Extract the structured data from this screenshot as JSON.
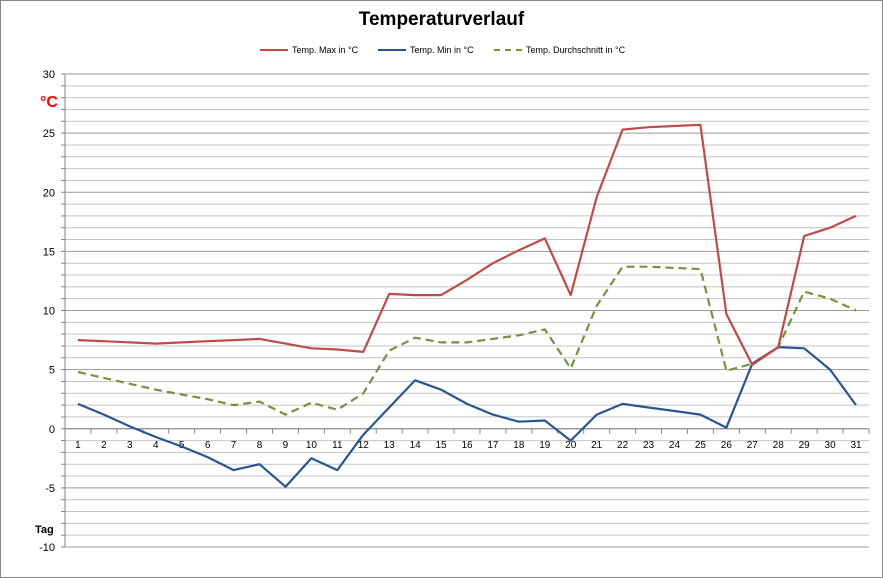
{
  "chart_data": {
    "type": "line",
    "title": "Temperaturverlauf",
    "unit_label": "°C",
    "xlabel": "Tag",
    "ylim": [
      -10,
      30
    ],
    "ytick_step": 5,
    "ytick_labels": [
      "30",
      "25",
      "20",
      "15",
      "10",
      "5",
      "0",
      "-5",
      "-10"
    ],
    "grid": true,
    "legend": "top",
    "categories": [
      "1",
      "2",
      "3",
      "4",
      "5",
      "6",
      "7",
      "8",
      "9",
      "10",
      "11",
      "12",
      "13",
      "14",
      "15",
      "16",
      "17",
      "18",
      "19",
      "20",
      "21",
      "22",
      "23",
      "24",
      "25",
      "26",
      "27",
      "28",
      "29",
      "30",
      "31"
    ],
    "series": [
      {
        "name": "Temp. Max in °C",
        "color": "#be4b48",
        "dash": "solid",
        "values": [
          7.5,
          7.4,
          7.3,
          7.2,
          7.3,
          7.4,
          7.5,
          7.6,
          7.2,
          6.8,
          6.7,
          6.5,
          11.4,
          11.3,
          11.3,
          12.6,
          14.0,
          15.1,
          16.1,
          11.3,
          19.6,
          25.3,
          25.5,
          25.6,
          25.7,
          9.7,
          5.4,
          6.9,
          16.3,
          17.0,
          18.0
        ]
      },
      {
        "name": "Temp. Min in °C",
        "color": "#2b5590",
        "dash": "solid",
        "values": [
          2.1,
          1.2,
          0.2,
          -0.7,
          -1.5,
          -2.4,
          -3.5,
          -3.0,
          -4.9,
          -2.5,
          -3.5,
          -0.5,
          1.8,
          4.1,
          3.3,
          2.1,
          1.2,
          0.6,
          0.7,
          -1.0,
          1.2,
          2.1,
          1.8,
          1.5,
          1.2,
          0.1,
          5.5,
          6.9,
          6.8,
          5.0,
          2.0
        ]
      },
      {
        "name": "Temp. Durchschnitt in °C",
        "color": "#76923c",
        "dash": "dashed",
        "values": [
          4.8,
          4.3,
          3.8,
          3.3,
          2.9,
          2.5,
          2.0,
          2.3,
          1.2,
          2.2,
          1.6,
          3.0,
          6.6,
          7.7,
          7.3,
          7.3,
          7.6,
          7.9,
          8.4,
          5.1,
          10.4,
          13.7,
          13.7,
          13.6,
          13.5,
          4.9,
          5.5,
          6.9,
          11.6,
          11.0,
          10.0
        ]
      }
    ]
  }
}
